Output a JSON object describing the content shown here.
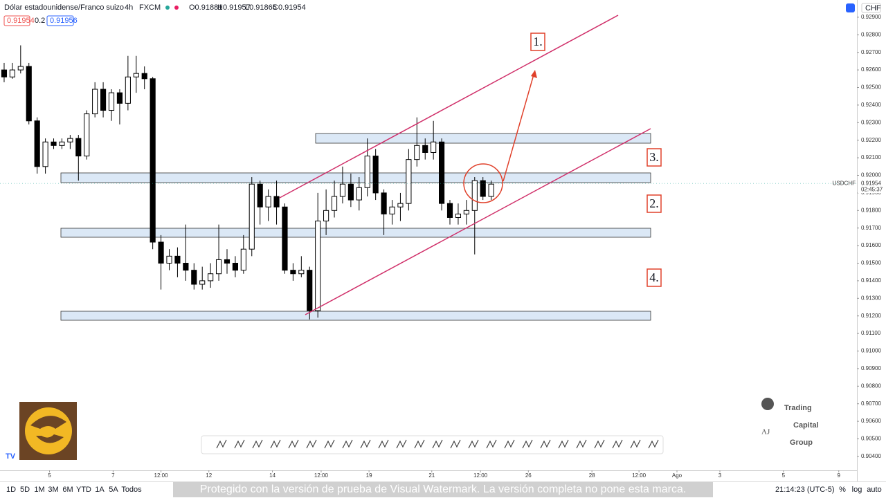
{
  "header": {
    "symbol": "Dólar estadounidense/Franco suizo",
    "interval": "4h",
    "exchange": "FXCM",
    "ohlc": [
      "O0.91881",
      "H0.91957",
      "L0.91865",
      "C0.91954"
    ],
    "bid": "0.91954",
    "spread": "0.2",
    "ask": "0.91956"
  },
  "currency": "CHF",
  "chart_data": {
    "type": "candlestick",
    "symbol": "USDCHF",
    "last_price": 0.91954,
    "countdown": "02:45:37",
    "open": [
      0.926,
      0.9256,
      0.926,
      0.9262,
      0.9231,
      0.9205,
      0.9219,
      0.9217,
      0.9219,
      0.9221,
      0.9211,
      0.9235,
      0.9249,
      0.9237,
      0.9247,
      0.9241,
      0.9256,
      0.9258,
      0.9255,
      0.9162,
      0.915,
      0.9154,
      0.915,
      0.9146,
      0.9138,
      0.914,
      0.9144,
      0.9152,
      0.915,
      0.9146,
      0.9158,
      0.9195,
      0.9182,
      0.9188,
      0.9182,
      0.9146,
      0.9144,
      0.9146,
      0.9123,
      0.9174,
      0.918,
      0.9188,
      0.9195,
      0.9186,
      0.9193,
      0.9211,
      0.919,
      0.9178,
      0.9182,
      0.9184,
      0.9209,
      0.9217,
      0.9213,
      0.9219,
      0.9184,
      0.9176,
      0.9178,
      0.918,
      0.9197,
      0.9188
    ],
    "high": [
      0.9264,
      0.9264,
      0.9274,
      0.9264,
      0.9233,
      0.9221,
      0.9221,
      0.9221,
      0.9223,
      0.9223,
      0.9237,
      0.9253,
      0.9253,
      0.9249,
      0.9249,
      0.9268,
      0.9268,
      0.9262,
      0.9256,
      0.9166,
      0.9158,
      0.9159,
      0.9172,
      0.915,
      0.9148,
      0.915,
      0.9172,
      0.9158,
      0.9154,
      0.9166,
      0.9199,
      0.9197,
      0.9192,
      0.9197,
      0.9184,
      0.915,
      0.9154,
      0.9148,
      0.919,
      0.9192,
      0.9197,
      0.9205,
      0.9201,
      0.9199,
      0.9221,
      0.9215,
      0.9192,
      0.9186,
      0.919,
      0.9215,
      0.9233,
      0.9221,
      0.9231,
      0.9221,
      0.9186,
      0.9184,
      0.9186,
      0.9199,
      0.9199,
      0.9197
    ],
    "low": [
      0.9253,
      0.9255,
      0.9258,
      0.9229,
      0.9201,
      0.9201,
      0.9215,
      0.9215,
      0.9215,
      0.9197,
      0.9209,
      0.9233,
      0.9233,
      0.9231,
      0.9229,
      0.9237,
      0.9247,
      0.9249,
      0.9158,
      0.9135,
      0.9146,
      0.9142,
      0.914,
      0.9135,
      0.9135,
      0.9136,
      0.914,
      0.9144,
      0.9142,
      0.9144,
      0.9154,
      0.9172,
      0.9174,
      0.9172,
      0.9144,
      0.914,
      0.9142,
      0.9118,
      0.9119,
      0.9166,
      0.9176,
      0.9184,
      0.9182,
      0.918,
      0.9188,
      0.9186,
      0.9166,
      0.9172,
      0.9174,
      0.918,
      0.9205,
      0.9209,
      0.9209,
      0.918,
      0.9172,
      0.9172,
      0.9172,
      0.9155,
      0.9186,
      0.9186
    ],
    "close": [
      0.9256,
      0.926,
      0.9262,
      0.9231,
      0.9205,
      0.9219,
      0.9217,
      0.9219,
      0.9221,
      0.9211,
      0.9235,
      0.9249,
      0.9237,
      0.9247,
      0.9241,
      0.9256,
      0.9258,
      0.9255,
      0.9162,
      0.915,
      0.9154,
      0.915,
      0.9146,
      0.9138,
      0.914,
      0.9144,
      0.9152,
      0.915,
      0.9146,
      0.9158,
      0.9195,
      0.9182,
      0.9188,
      0.9182,
      0.9146,
      0.9144,
      0.9146,
      0.9123,
      0.9174,
      0.918,
      0.9188,
      0.9195,
      0.9186,
      0.9193,
      0.9211,
      0.919,
      0.9178,
      0.9182,
      0.9184,
      0.9209,
      0.9217,
      0.9213,
      0.9219,
      0.9184,
      0.9176,
      0.9178,
      0.918,
      0.9197,
      0.9188,
      0.9195
    ],
    "up_color": "#ffffff",
    "down_color": "#000000",
    "ylim": [
      0.90321,
      0.92998
    ],
    "yticks": [
      {
        "value": 0.929,
        "label": "0.92900"
      },
      {
        "value": 0.928,
        "label": "0.92800"
      },
      {
        "value": 0.927,
        "label": "0.92700"
      },
      {
        "value": 0.926,
        "label": "0.92600"
      },
      {
        "value": 0.925,
        "label": "0.92500"
      },
      {
        "value": 0.924,
        "label": "0.92400"
      },
      {
        "value": 0.923,
        "label": "0.92300"
      },
      {
        "value": 0.922,
        "label": "0.92200"
      },
      {
        "value": 0.921,
        "label": "0.92100"
      },
      {
        "value": 0.92,
        "label": "0.92000"
      },
      {
        "value": 0.919,
        "label": "0.91900"
      },
      {
        "value": 0.918,
        "label": "0.91800"
      },
      {
        "value": 0.917,
        "label": "0.91700"
      },
      {
        "value": 0.916,
        "label": "0.91600"
      },
      {
        "value": 0.915,
        "label": "0.91500"
      },
      {
        "value": 0.914,
        "label": "0.91400"
      },
      {
        "value": 0.913,
        "label": "0.91300"
      },
      {
        "value": 0.912,
        "label": "0.91200"
      },
      {
        "value": 0.911,
        "label": "0.91100"
      },
      {
        "value": 0.91,
        "label": "0.91000"
      },
      {
        "value": 0.909,
        "label": "0.90900"
      },
      {
        "value": 0.908,
        "label": "0.90800"
      },
      {
        "value": 0.907,
        "label": "0.90700"
      },
      {
        "value": 0.906,
        "label": "0.90600"
      },
      {
        "value": 0.905,
        "label": "0.90500"
      },
      {
        "value": 0.904,
        "label": "0.90400"
      }
    ],
    "xlim": [
      -0.5,
      103.3
    ],
    "xticks": [
      {
        "value": 5.5,
        "label": "5"
      },
      {
        "value": 13.2,
        "label": "7"
      },
      {
        "value": 19,
        "label": "12:00"
      },
      {
        "value": 24.8,
        "label": "12"
      },
      {
        "value": 32.5,
        "label": "14"
      },
      {
        "value": 38.4,
        "label": "12:00"
      },
      {
        "value": 44.2,
        "label": "19"
      },
      {
        "value": 51.8,
        "label": "21"
      },
      {
        "value": 57.7,
        "label": "12:00"
      },
      {
        "value": 63.5,
        "label": "26"
      },
      {
        "value": 71.2,
        "label": "28"
      },
      {
        "value": 76.9,
        "label": "12:00"
      },
      {
        "value": 81.5,
        "label": "Ago"
      },
      {
        "value": 86.7,
        "label": "3"
      },
      {
        "value": 94.4,
        "label": "5"
      },
      {
        "value": 101.1,
        "label": "9"
      }
    ],
    "annotations": [
      "1.",
      "2.",
      "3.",
      "4."
    ]
  },
  "ranges": [
    "1D",
    "5D",
    "1M",
    "3M",
    "6M",
    "YTD",
    "1A",
    "5A",
    "Todos"
  ],
  "clock": "21:14:23 (UTC-5)",
  "scale_options": [
    "%",
    "log",
    "auto"
  ],
  "watermark": "Protegido con la versión de prueba de Visual Watermark. La versión completa no pone esta marca.",
  "brand": [
    "Trading",
    "Capital",
    "Group"
  ]
}
